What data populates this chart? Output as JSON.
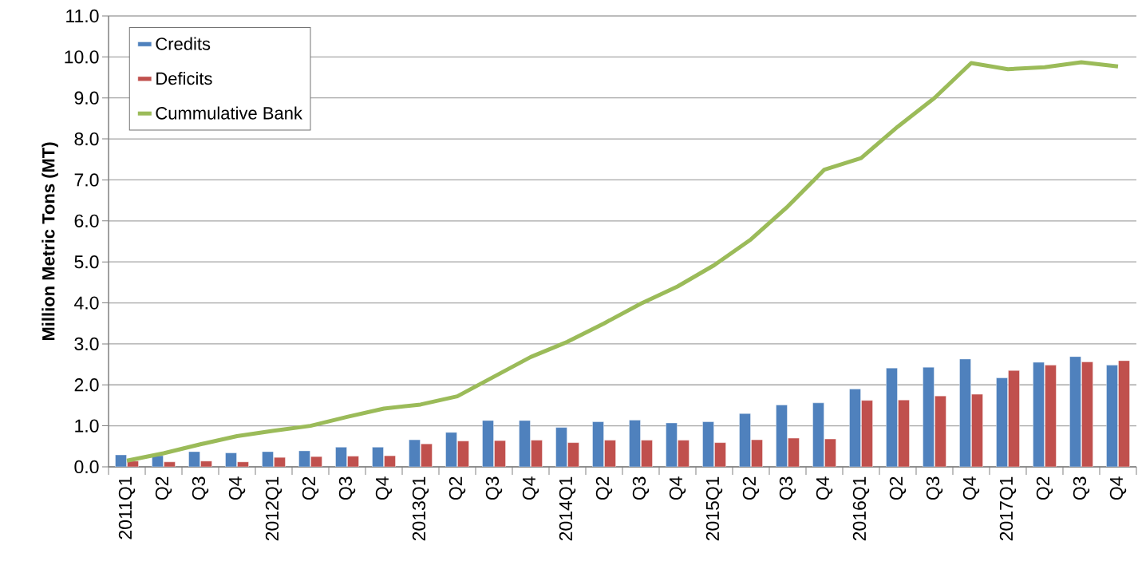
{
  "chart_data": {
    "type": "bar",
    "ylabel": "Million Metric Tons (MT)",
    "categories": [
      "2011Q1",
      "Q2",
      "Q3",
      "Q4",
      "2012Q1",
      "Q2",
      "Q3",
      "Q4",
      "2013Q1",
      "Q2",
      "Q3",
      "Q4",
      "2014Q1",
      "Q2",
      "Q3",
      "Q4",
      "2015Q1",
      "Q2",
      "Q3",
      "Q4",
      "2016Q1",
      "Q2",
      "Q3",
      "Q4",
      "2017Q1",
      "Q2",
      "Q3",
      "Q4"
    ],
    "series": [
      {
        "name": "Credits",
        "color": "#4f81bd",
        "values": [
          0.29,
          0.27,
          0.37,
          0.34,
          0.37,
          0.39,
          0.48,
          0.48,
          0.66,
          0.84,
          1.13,
          1.13,
          0.96,
          1.1,
          1.14,
          1.07,
          1.1,
          1.3,
          1.51,
          1.56,
          1.9,
          2.41,
          2.43,
          2.63,
          2.17,
          2.55,
          2.69,
          2.48
        ]
      },
      {
        "name": "Deficits",
        "color": "#c0504d",
        "values": [
          0.14,
          0.12,
          0.14,
          0.12,
          0.23,
          0.25,
          0.26,
          0.27,
          0.56,
          0.63,
          0.64,
          0.65,
          0.59,
          0.65,
          0.65,
          0.65,
          0.59,
          0.66,
          0.7,
          0.68,
          1.62,
          1.63,
          1.73,
          1.77,
          2.35,
          2.48,
          2.56,
          2.59
        ]
      },
      {
        "name": "Cummulative Bank",
        "type": "line",
        "color": "#9bbb59",
        "values": [
          0.15,
          0.33,
          0.55,
          0.75,
          0.88,
          1.0,
          1.22,
          1.42,
          1.52,
          1.72,
          2.2,
          2.68,
          3.05,
          3.5,
          3.98,
          4.4,
          4.92,
          5.55,
          6.35,
          7.25,
          7.53,
          8.3,
          9.0,
          9.85,
          9.7,
          9.75,
          9.87,
          9.77
        ]
      }
    ],
    "ylim": [
      0,
      11
    ],
    "yticks": [
      {
        "value": 0,
        "label": "0.0"
      },
      {
        "value": 1,
        "label": "1.0"
      },
      {
        "value": 2,
        "label": "2.0"
      },
      {
        "value": 3,
        "label": "3.0"
      },
      {
        "value": 4,
        "label": "4.0"
      },
      {
        "value": 5,
        "label": "5.0"
      },
      {
        "value": 6,
        "label": "6.0"
      },
      {
        "value": 7,
        "label": "7.0"
      },
      {
        "value": 8,
        "label": "8.0"
      },
      {
        "value": 9,
        "label": "9.0"
      },
      {
        "value": 10,
        "label": "10.0"
      },
      {
        "value": 11,
        "label": "11.0"
      }
    ],
    "grid": "y",
    "legend": "top left"
  }
}
